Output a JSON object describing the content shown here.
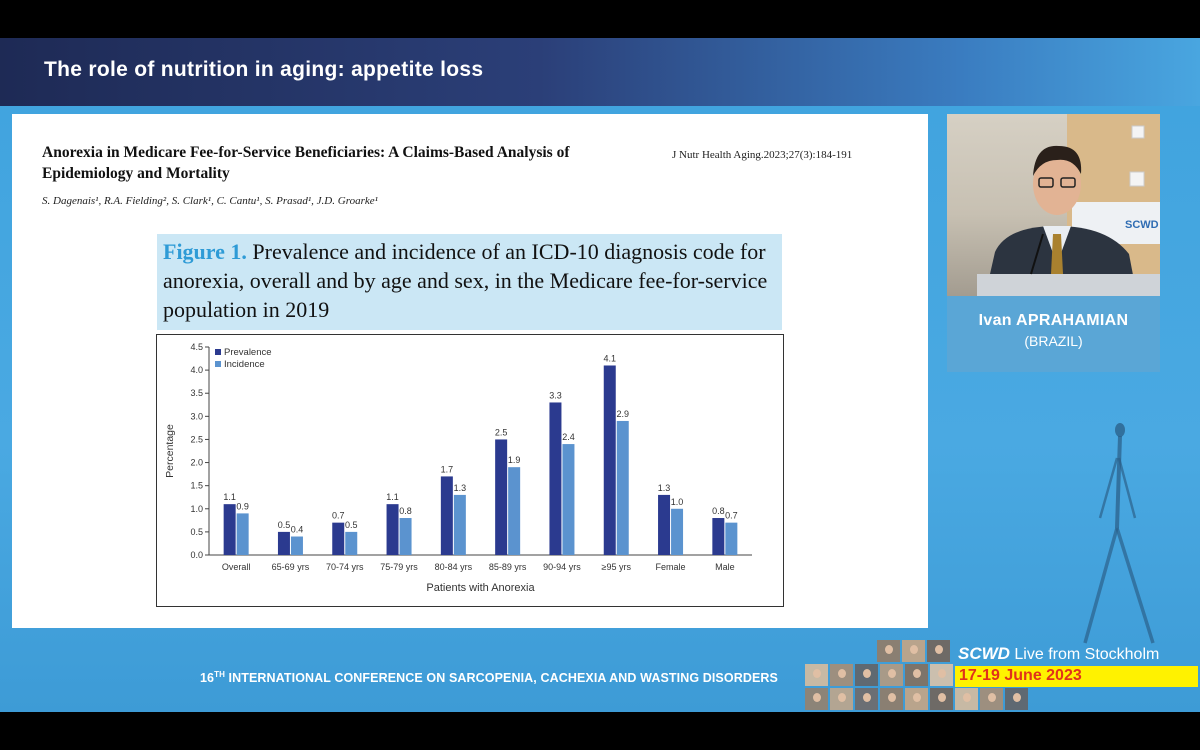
{
  "slide": {
    "title": "The role of nutrition in aging: appetite loss",
    "paper_title": "Anorexia in Medicare Fee-for-Service Beneficiaries: A Claims-Based Analysis of Epidemiology and Mortality",
    "journal_ref": "J Nutr Health Aging.2023;27(3):184-191",
    "authors": "S. Dagenais¹, R.A. Fielding², S. Clark¹, C. Cantu¹, S. Prasad¹, J.D. Groarke¹",
    "figure_label": "Figure 1.",
    "figure_caption": "Prevalence and incidence of an ICD-10 diagnosis code for anorexia, overall and by age and sex, in the Medicare fee-for-service population in 2019"
  },
  "chart_data": {
    "type": "bar",
    "categories": [
      "Overall",
      "65-69 yrs",
      "70-74 yrs",
      "75-79 yrs",
      "80-84 yrs",
      "85-89 yrs",
      "90-94 yrs",
      "≥95 yrs",
      "Female",
      "Male"
    ],
    "series": [
      {
        "name": "Prevalence",
        "values": [
          1.1,
          0.5,
          0.7,
          1.1,
          1.7,
          2.5,
          3.3,
          4.1,
          1.3,
          0.8
        ],
        "labels": [
          "1.1",
          "0.5",
          "0.7",
          "1.1",
          "1.7",
          "2.5",
          "3.3",
          "4.1",
          "1.3",
          "0.8"
        ],
        "color": "#2b3a8f"
      },
      {
        "name": "Incidence",
        "values": [
          0.9,
          0.4,
          0.5,
          0.8,
          1.3,
          1.9,
          2.4,
          2.9,
          1.0,
          0.7
        ],
        "labels": [
          "0.9",
          "0.4",
          "0.5",
          "0.8",
          "1.3",
          "1.9",
          "2.4",
          "2.9",
          "1.0",
          "0.7"
        ],
        "color": "#5b93cf"
      }
    ],
    "xlabel": "Patients with Anorexia",
    "ylabel": "Percentage",
    "ylim": [
      0,
      4.5
    ],
    "yticks": [
      "0.0",
      "0.5",
      "1.0",
      "1.5",
      "2.0",
      "2.5",
      "3.0",
      "3.5",
      "4.0",
      "4.5"
    ],
    "legend_position": "top-left",
    "grid": false
  },
  "speaker": {
    "name": "Ivan APRAHAMIAN",
    "country": "(BRAZIL)"
  },
  "conference": {
    "number": "16",
    "suffix": "TH",
    "name": " INTERNATIONAL CONFERENCE ON SARCOPENIA, CACHEXIA  AND WASTING DISORDERS"
  },
  "event": {
    "brand": "SCWD",
    "live": " Live from Stockholm",
    "dates": "17-19 June 2023",
    "backdrop_logo": "SCWD"
  },
  "colors": {
    "prevalence": "#2b3a8f",
    "incidence": "#5b93cf",
    "caption_bg": "#cbe7f5",
    "stage_bg": "#3fa3de",
    "dates_bg": "#fff200",
    "dates_text": "#e0321b"
  }
}
